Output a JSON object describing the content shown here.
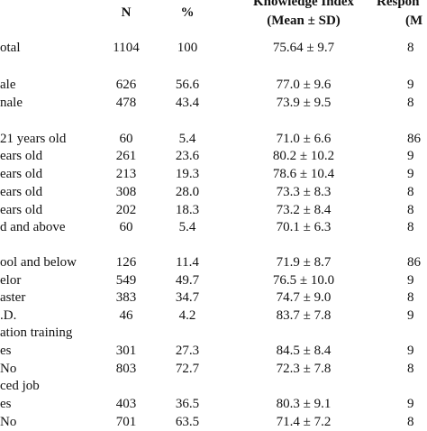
{
  "header": {
    "n": "N",
    "pct": "%",
    "knowledge_line1": "Knowledge Index",
    "knowledge_line2": "(Mean ± SD)",
    "response_line1": "Respon",
    "response_line2": "(M"
  },
  "rows": [
    {
      "label": "otal",
      "n": "1104",
      "pct": "100",
      "ki": "75.64 ± 9.7",
      "resp": "8"
    },
    {
      "label": "",
      "n": "",
      "pct": "",
      "ki": "",
      "resp": ""
    },
    {
      "label": "ale",
      "n": "626",
      "pct": "56.6",
      "ki": "77.0 ± 9.6",
      "resp": "9"
    },
    {
      "label": "nale",
      "n": "478",
      "pct": "43.4",
      "ki": "73.9 ± 9.5",
      "resp": "8"
    },
    {
      "label": "",
      "n": "",
      "pct": "",
      "ki": "",
      "resp": ""
    },
    {
      "label": "21 years old",
      "n": "60",
      "pct": "5.4",
      "ki": "71.0 ± 6.6",
      "resp": "86"
    },
    {
      "label": "ears old",
      "n": "261",
      "pct": "23.6",
      "ki": "80.2 ± 10.2",
      "resp": "9"
    },
    {
      "label": "ears old",
      "n": "213",
      "pct": "19.3",
      "ki": "78.6 ± 10.4",
      "resp": "9"
    },
    {
      "label": "ears old",
      "n": "308",
      "pct": "28.0",
      "ki": "73.3 ± 8.3",
      "resp": "8"
    },
    {
      "label": "ears old",
      "n": "202",
      "pct": "18.3",
      "ki": "73.2 ± 8.4",
      "resp": "8"
    },
    {
      "label": "d and above",
      "n": "60",
      "pct": "5.4",
      "ki": "70.1 ± 6.3",
      "resp": "8"
    },
    {
      "label": "",
      "n": "",
      "pct": "",
      "ki": "",
      "resp": ""
    },
    {
      "label": "ool and below",
      "n": "126",
      "pct": "11.4",
      "ki": "71.9 ± 8.7",
      "resp": "86"
    },
    {
      "label": "elor",
      "n": "549",
      "pct": "49.7",
      "ki": "76.5 ± 10.0",
      "resp": "9"
    },
    {
      "label": "aster",
      "n": "383",
      "pct": "34.7",
      "ki": "74.7 ± 9.0",
      "resp": "8"
    },
    {
      "label": ".D.",
      "n": "46",
      "pct": "4.2",
      "ki": "83.7 ± 7.8",
      "resp": "9"
    },
    {
      "label": "ation training",
      "n": "",
      "pct": "",
      "ki": "",
      "resp": ""
    },
    {
      "label": "es",
      "n": "301",
      "pct": "27.3",
      "ki": "84.5 ± 8.4",
      "resp": "9"
    },
    {
      "label": "No",
      "n": "803",
      "pct": "72.7",
      "ki": "72.3 ± 7.8",
      "resp": "8"
    },
    {
      "label": "ced job",
      "n": "",
      "pct": "",
      "ki": "",
      "resp": ""
    },
    {
      "label": "es",
      "n": "403",
      "pct": "36.5",
      "ki": "80.3 ± 9.1",
      "resp": "9"
    },
    {
      "label": "No",
      "n": "701",
      "pct": "63.5",
      "ki": "71.4 ± 7.2",
      "resp": "8"
    }
  ]
}
